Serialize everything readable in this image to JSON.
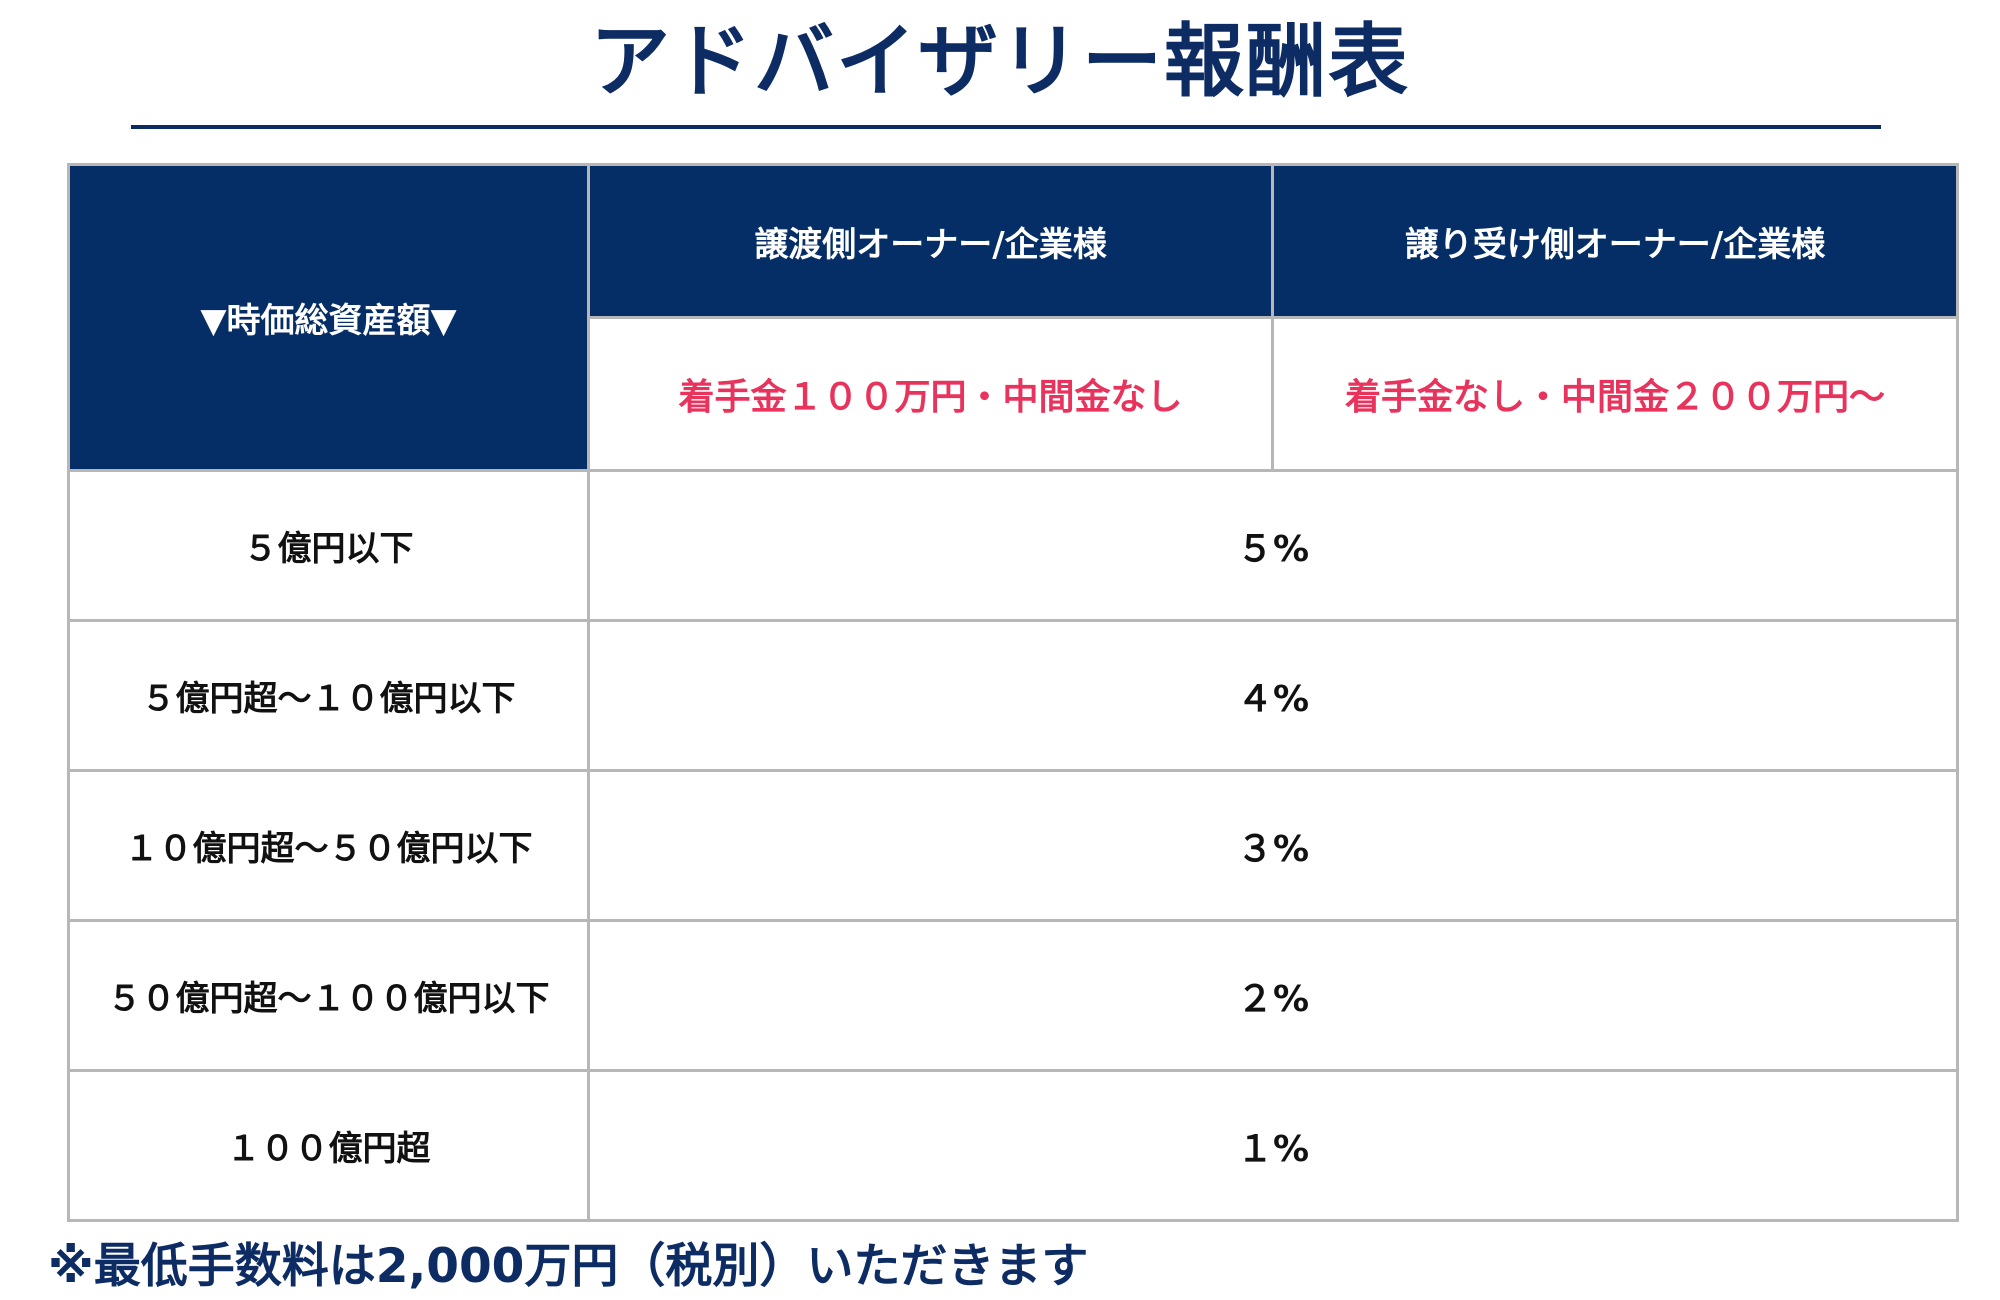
{
  "page": {
    "title": "アドバイザリー報酬表",
    "footnote": "※最低手数料は2,000万円（税別）いただきます"
  },
  "table": {
    "header": {
      "asset": "▼時価総資産額▼",
      "transfer": "譲渡側オーナー/企業様",
      "receive": "譲り受け側オーナー/企業様"
    },
    "fees": {
      "transfer": "着手金１００万円・中間金なし",
      "receive": "着手金なし・中間金２００万円〜"
    },
    "rows": [
      {
        "asset": "５億円以下",
        "rate": "５%"
      },
      {
        "asset": "５億円超〜１０億円以下",
        "rate": "４%"
      },
      {
        "asset": "１０億円超〜５０億円以下",
        "rate": "３%"
      },
      {
        "asset": "５０億円超〜１００億円以下",
        "rate": "２%"
      },
      {
        "asset": "１００億円超",
        "rate": "１%"
      }
    ]
  },
  "colors": {
    "header_bg": "#062e66",
    "title_color": "#0d2c64",
    "fee_text": "#e8345d",
    "border": "#b7b7b7"
  }
}
